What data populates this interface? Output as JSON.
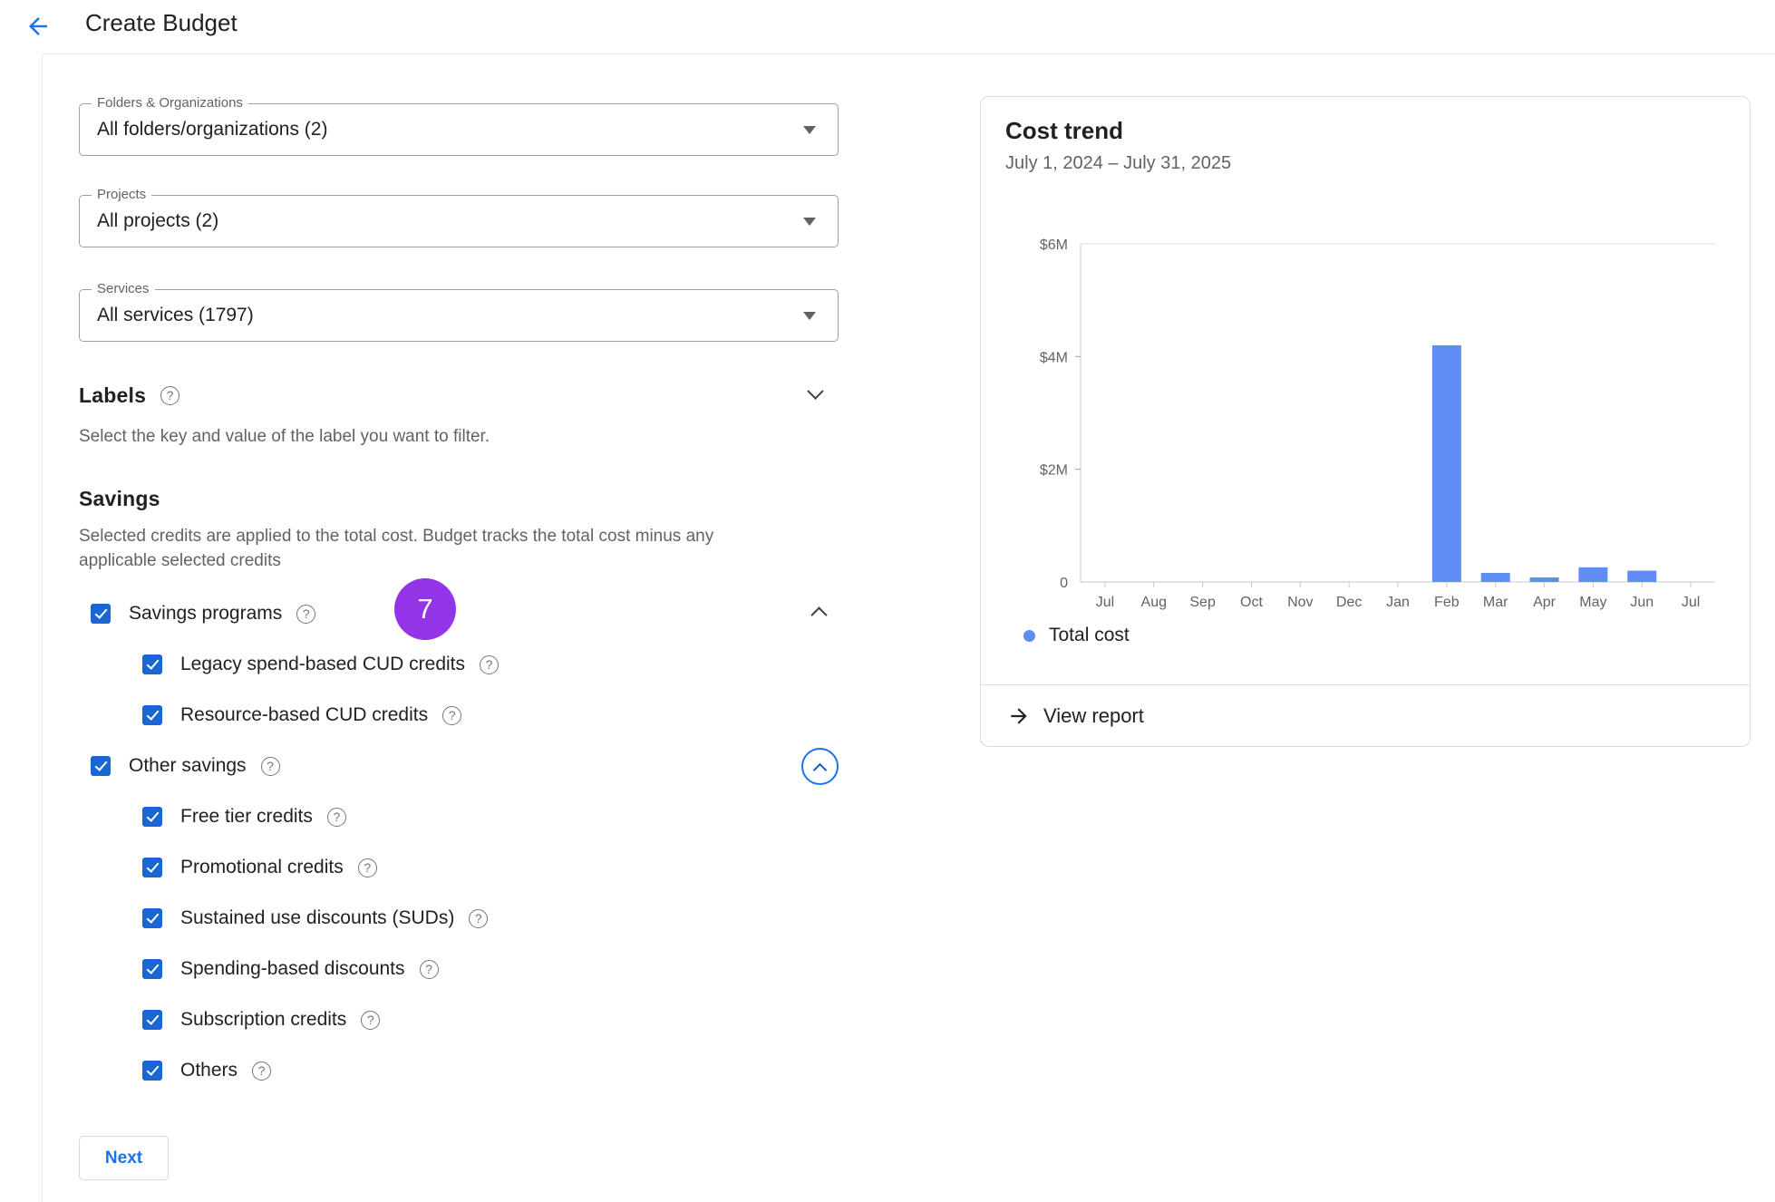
{
  "header": {
    "title": "Create Budget"
  },
  "filters": [
    {
      "id": "folders",
      "label": "Folders & Organizations",
      "value": "All folders/organizations (2)"
    },
    {
      "id": "projects",
      "label": "Projects",
      "value": "All projects (2)"
    },
    {
      "id": "services",
      "label": "Services",
      "value": "All services (1797)"
    }
  ],
  "labels_section": {
    "title": "Labels",
    "description": "Select the key and value of the label you want to filter."
  },
  "savings_section": {
    "title": "Savings",
    "description": "Selected credits are applied to the total cost. Budget tracks the total cost minus any applicable selected credits",
    "step_badge": "7",
    "groups": [
      {
        "label": "Savings programs",
        "checked": true,
        "chevron": "up",
        "focus_ring": false,
        "children": [
          {
            "label": "Legacy spend-based CUD credits",
            "checked": true
          },
          {
            "label": "Resource-based CUD credits",
            "checked": true
          }
        ]
      },
      {
        "label": "Other savings",
        "checked": true,
        "chevron": "up",
        "focus_ring": true,
        "children": [
          {
            "label": "Free tier credits",
            "checked": true
          },
          {
            "label": "Promotional credits",
            "checked": true
          },
          {
            "label": "Sustained use discounts (SUDs)",
            "checked": true
          },
          {
            "label": "Spending-based discounts",
            "checked": true
          },
          {
            "label": "Subscription credits",
            "checked": true
          },
          {
            "label": "Others",
            "checked": true
          }
        ]
      }
    ]
  },
  "next_button": {
    "label": "Next"
  },
  "cost_trend_card": {
    "title": "Cost trend",
    "subtitle": "July 1, 2024 – July 31, 2025",
    "legend": [
      {
        "label": "Total cost",
        "color": "#5e8df6"
      }
    ],
    "view_report": "View report"
  },
  "chart_data": {
    "type": "bar",
    "title": "Cost trend",
    "subtitle": "July 1, 2024 – July 31, 2025",
    "x": [
      "Jul",
      "Aug",
      "Sep",
      "Oct",
      "Nov",
      "Dec",
      "Jan",
      "Feb",
      "Mar",
      "Apr",
      "May",
      "Jun",
      "Jul"
    ],
    "series": [
      {
        "name": "Total cost",
        "values": [
          0,
          0,
          0,
          0,
          0,
          0,
          0,
          4.2,
          0.16,
          0.08,
          0.26,
          0.2,
          0
        ],
        "color": "#5e8df6"
      }
    ],
    "y_unit": "USD millions",
    "ylim": [
      0,
      6
    ],
    "yticks": [
      {
        "v": 0,
        "label": "0"
      },
      {
        "v": 2,
        "label": "$2M"
      },
      {
        "v": 4,
        "label": "$4M"
      },
      {
        "v": 6,
        "label": "$6M"
      }
    ],
    "legend_position": "bottom-left",
    "grid": "top line only"
  },
  "colors": {
    "primary_blue": "#1a73e8",
    "checkbox_blue": "#1967d2",
    "bar_blue": "#5e8df6",
    "step_badge_purple": "#9334e6",
    "text_dark": "#202124",
    "text_gray": "#5f6368",
    "border": "#dadce0"
  }
}
